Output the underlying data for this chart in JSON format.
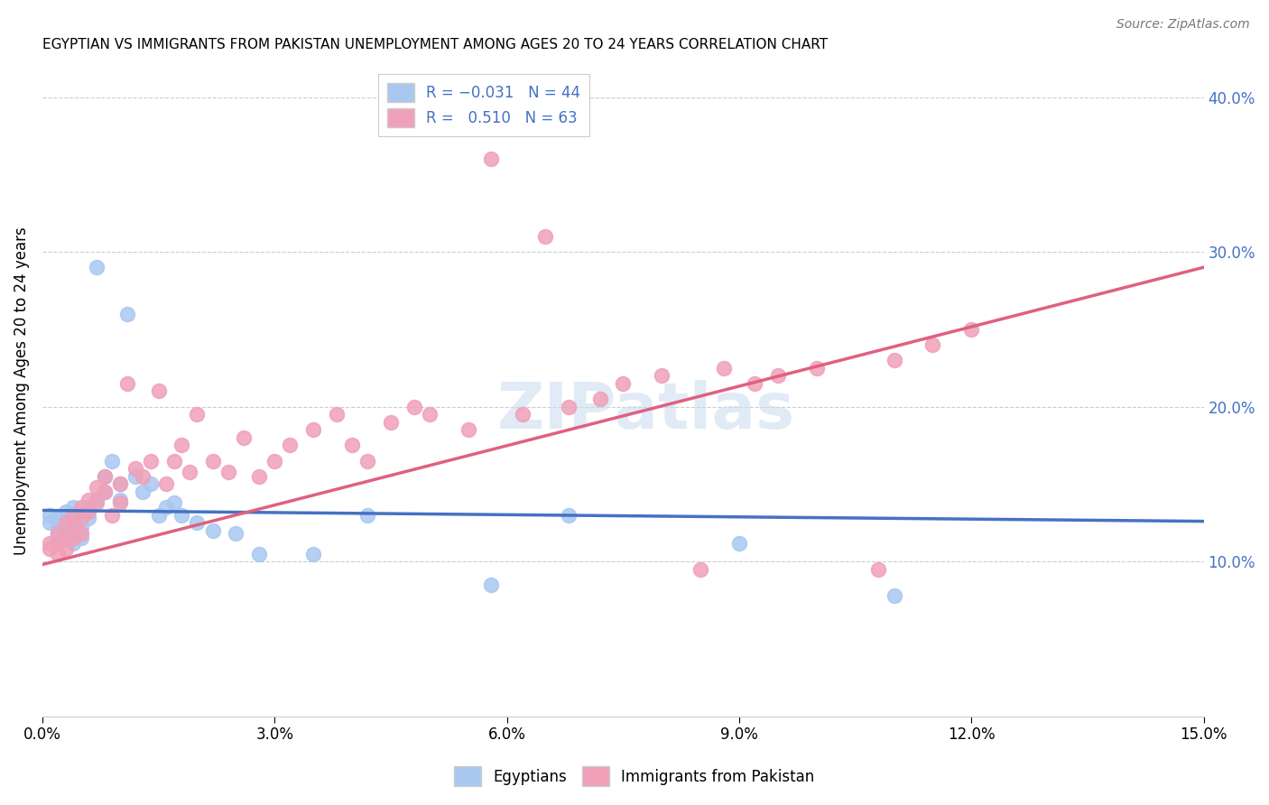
{
  "title": "EGYPTIAN VS IMMIGRANTS FROM PAKISTAN UNEMPLOYMENT AMONG AGES 20 TO 24 YEARS CORRELATION CHART",
  "source": "Source: ZipAtlas.com",
  "ylabel": "Unemployment Among Ages 20 to 24 years",
  "xlim": [
    0.0,
    0.15
  ],
  "ylim": [
    0.0,
    0.42
  ],
  "xticks": [
    0.0,
    0.03,
    0.06,
    0.09,
    0.12,
    0.15
  ],
  "yticks_right": [
    0.1,
    0.2,
    0.3,
    0.4
  ],
  "watermark": "ZIPatlas",
  "color_blue": "#A8C8F0",
  "color_pink": "#F0A0B8",
  "line_blue": "#4472C4",
  "line_pink": "#E06080",
  "background_color": "#FFFFFF",
  "grid_color": "#CCCCCC",
  "egyptians_x": [
    0.001,
    0.001,
    0.002,
    0.002,
    0.002,
    0.002,
    0.003,
    0.003,
    0.003,
    0.003,
    0.004,
    0.004,
    0.004,
    0.004,
    0.005,
    0.005,
    0.005,
    0.006,
    0.006,
    0.007,
    0.007,
    0.008,
    0.008,
    0.009,
    0.01,
    0.01,
    0.011,
    0.012,
    0.013,
    0.014,
    0.015,
    0.016,
    0.017,
    0.018,
    0.02,
    0.022,
    0.025,
    0.028,
    0.035,
    0.042,
    0.058,
    0.068,
    0.09,
    0.11
  ],
  "egyptians_y": [
    0.13,
    0.125,
    0.128,
    0.122,
    0.118,
    0.115,
    0.132,
    0.128,
    0.12,
    0.115,
    0.135,
    0.125,
    0.118,
    0.112,
    0.13,
    0.122,
    0.115,
    0.135,
    0.128,
    0.29,
    0.14,
    0.155,
    0.145,
    0.165,
    0.15,
    0.14,
    0.26,
    0.155,
    0.145,
    0.15,
    0.13,
    0.135,
    0.138,
    0.13,
    0.125,
    0.12,
    0.118,
    0.105,
    0.105,
    0.13,
    0.085,
    0.13,
    0.112,
    0.078
  ],
  "pakistan_x": [
    0.001,
    0.001,
    0.002,
    0.002,
    0.002,
    0.003,
    0.003,
    0.003,
    0.004,
    0.004,
    0.004,
    0.005,
    0.005,
    0.005,
    0.006,
    0.006,
    0.007,
    0.007,
    0.008,
    0.008,
    0.009,
    0.01,
    0.01,
    0.011,
    0.012,
    0.013,
    0.014,
    0.015,
    0.016,
    0.017,
    0.018,
    0.019,
    0.02,
    0.022,
    0.024,
    0.026,
    0.028,
    0.03,
    0.032,
    0.035,
    0.038,
    0.04,
    0.042,
    0.045,
    0.048,
    0.05,
    0.055,
    0.058,
    0.062,
    0.065,
    0.068,
    0.072,
    0.075,
    0.08,
    0.085,
    0.088,
    0.092,
    0.095,
    0.1,
    0.108,
    0.11,
    0.115,
    0.12
  ],
  "pakistan_y": [
    0.112,
    0.108,
    0.118,
    0.112,
    0.105,
    0.125,
    0.115,
    0.108,
    0.13,
    0.122,
    0.115,
    0.135,
    0.128,
    0.118,
    0.14,
    0.132,
    0.148,
    0.138,
    0.155,
    0.145,
    0.13,
    0.15,
    0.138,
    0.215,
    0.16,
    0.155,
    0.165,
    0.21,
    0.15,
    0.165,
    0.175,
    0.158,
    0.195,
    0.165,
    0.158,
    0.18,
    0.155,
    0.165,
    0.175,
    0.185,
    0.195,
    0.175,
    0.165,
    0.19,
    0.2,
    0.195,
    0.185,
    0.36,
    0.195,
    0.31,
    0.2,
    0.205,
    0.215,
    0.22,
    0.095,
    0.225,
    0.215,
    0.22,
    0.225,
    0.095,
    0.23,
    0.24,
    0.25
  ]
}
